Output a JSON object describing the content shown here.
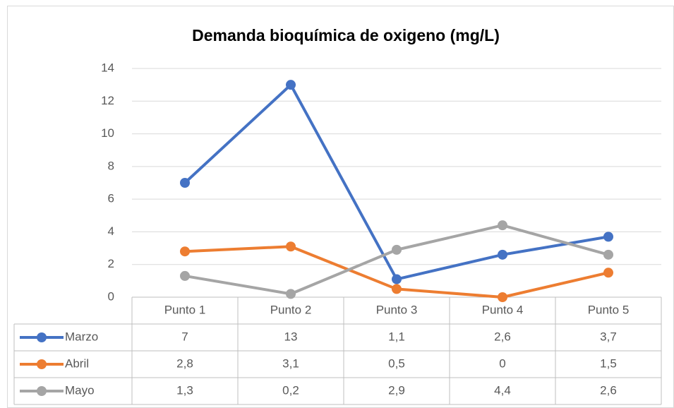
{
  "chart_data": {
    "type": "line",
    "title": "Demanda bioquímica de oxigeno (mg/L)",
    "categories": [
      "Punto 1",
      "Punto 2",
      "Punto 3",
      "Punto 4",
      "Punto 5"
    ],
    "series": [
      {
        "name": "Marzo",
        "color": "#4472c4",
        "values": [
          7,
          13,
          1.1,
          2.6,
          3.7
        ],
        "value_labels": [
          "7",
          "13",
          "1,1",
          "2,6",
          "3,7"
        ]
      },
      {
        "name": "Abril",
        "color": "#ed7d31",
        "values": [
          2.8,
          3.1,
          0.5,
          0,
          1.5
        ],
        "value_labels": [
          "2,8",
          "3,1",
          "0,5",
          "0",
          "1,5"
        ]
      },
      {
        "name": "Mayo",
        "color": "#a5a5a5",
        "values": [
          1.3,
          0.2,
          2.9,
          4.4,
          2.6
        ],
        "value_labels": [
          "1,3",
          "0,2",
          "2,9",
          "4,4",
          "2,6"
        ]
      }
    ],
    "ylim": [
      0,
      14
    ],
    "yticks": [
      0,
      2,
      4,
      6,
      8,
      10,
      12,
      14
    ],
    "grid": true
  }
}
